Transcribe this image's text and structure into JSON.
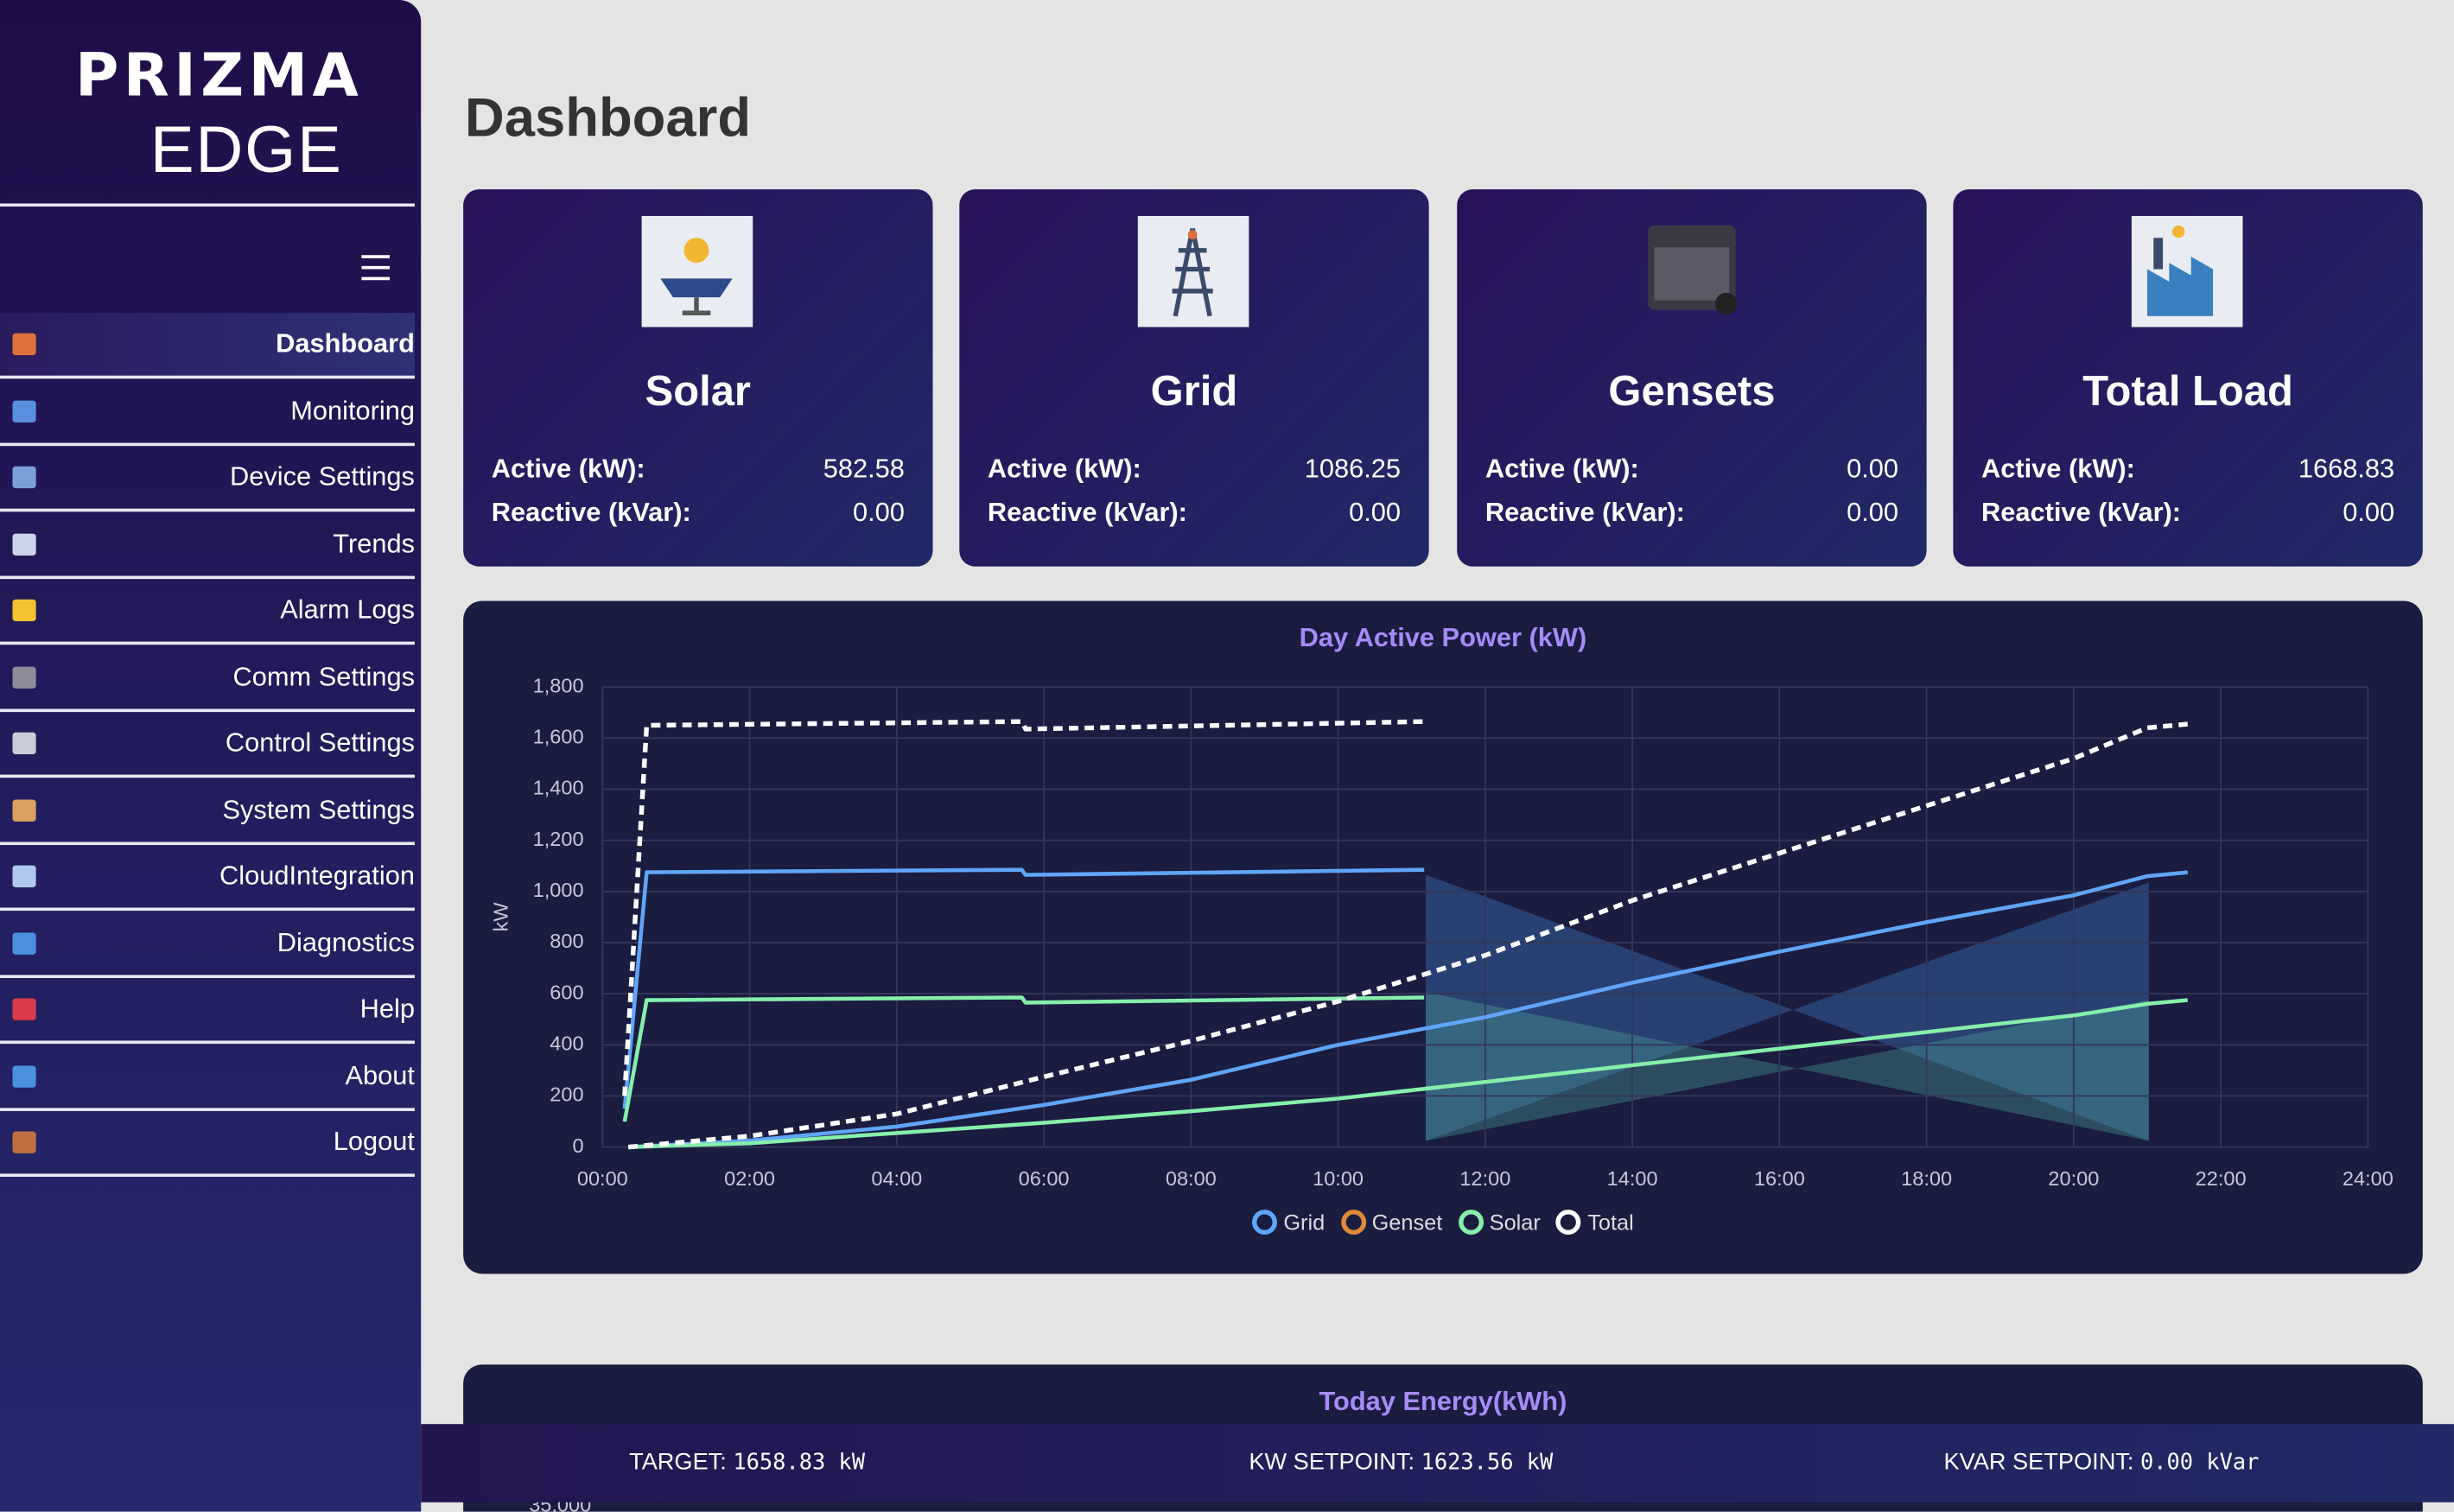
{
  "sidebar": {
    "logo_top": "PRIZMA",
    "logo_bottom": "EDGE",
    "nav": [
      "Dashboard",
      "Monitoring",
      "Device Settings",
      "Trends",
      "Alarm Logs",
      "Comm Settings",
      "Control Settings",
      "System Settings",
      "CloudIntegration",
      "Diagnostics",
      "Help",
      "About",
      "Logout"
    ]
  },
  "page_title": "Dashboard",
  "cards": [
    {
      "title": "Solar",
      "rows": [
        {
          "label": "Active (kW):",
          "value": "582.58"
        },
        {
          "label": "Reactive (kVar):",
          "value": "0.00"
        }
      ]
    },
    {
      "title": "Grid",
      "rows": [
        {
          "label": "Active (kW):",
          "value": "1086.25"
        },
        {
          "label": "Reactive (kVar):",
          "value": "0.00"
        }
      ]
    },
    {
      "title": "Gensets",
      "rows": [
        {
          "label": "Active (kW):",
          "value": "0.00"
        },
        {
          "label": "Reactive (kVar):",
          "value": "0.00"
        }
      ]
    },
    {
      "title": "Total Load",
      "rows": [
        {
          "label": "Active (kW):",
          "value": "1668.83"
        },
        {
          "label": "Reactive (kVar):",
          "value": "0.00"
        }
      ]
    }
  ],
  "chart_data": {
    "type": "line",
    "title": "Day Active Power (kW)",
    "y_label": "kW",
    "x": [
      0.3,
      0.6,
      5.7,
      5.75,
      11.17,
      null,
      0.35,
      2,
      4,
      6,
      8,
      10,
      12,
      14,
      16,
      18,
      20,
      21,
      21.55
    ],
    "series": [
      {
        "name": "Grid",
        "color": "#60a5fa",
        "values": [
          150,
          1075,
          1085,
          1065,
          1085,
          null,
          0,
          25,
          80,
          165,
          263,
          400,
          508,
          643,
          765,
          880,
          985,
          1060,
          1075
        ]
      },
      {
        "name": "Genset",
        "color": "#e08a3c",
        "values": [
          null,
          null,
          null,
          null,
          null,
          null,
          null,
          null,
          null,
          null,
          null,
          null,
          null,
          null,
          null,
          null,
          null,
          null,
          null
        ]
      },
      {
        "name": "Solar",
        "color": "#86efac",
        "values": [
          100,
          575,
          585,
          565,
          585,
          null,
          0,
          15,
          55,
          95,
          140,
          190,
          255,
          320,
          385,
          450,
          515,
          560,
          575
        ]
      },
      {
        "name": "Total",
        "color": "#ffffff",
        "dashed": true,
        "values": [
          200,
          1650,
          1665,
          1635,
          1665,
          null,
          0,
          43,
          130,
          275,
          415,
          570,
          750,
          965,
          1150,
          1335,
          1520,
          1640,
          1655
        ]
      }
    ],
    "xlim": [
      0,
      24
    ],
    "xticks": [
      {
        "value": 0,
        "label": "00:00"
      },
      {
        "value": 2,
        "label": "02:00"
      },
      {
        "value": 4,
        "label": "04:00"
      },
      {
        "value": 6,
        "label": "06:00"
      },
      {
        "value": 8,
        "label": "08:00"
      },
      {
        "value": 10,
        "label": "10:00"
      },
      {
        "value": 12,
        "label": "12:00"
      },
      {
        "value": 14,
        "label": "14:00"
      },
      {
        "value": 16,
        "label": "16:00"
      },
      {
        "value": 18,
        "label": "18:00"
      },
      {
        "value": 20,
        "label": "20:00"
      },
      {
        "value": 22,
        "label": "22:00"
      },
      {
        "value": 24,
        "label": "24:00"
      }
    ],
    "ylim": [
      0,
      1800
    ],
    "yticks": [
      0,
      200,
      400,
      600,
      800,
      {
        "value": 1000,
        "label": "1,000"
      },
      {
        "value": 1200,
        "label": "1,200"
      },
      {
        "value": 1400,
        "label": "1,400"
      },
      {
        "value": 1600,
        "label": "1,600"
      },
      {
        "value": 1800,
        "label": "1,800"
      }
    ],
    "grid": true
  },
  "energy_panel": {
    "title": "Today Energy(kWh)",
    "first_tick": "35,000"
  },
  "footer": [
    {
      "label": "TARGET:",
      "value": "1658.83 kW"
    },
    {
      "label": "KW SETPOINT:",
      "value": "1623.56 kW"
    },
    {
      "label": "KVAR SETPOINT:",
      "value": "0.00 kVar"
    }
  ]
}
